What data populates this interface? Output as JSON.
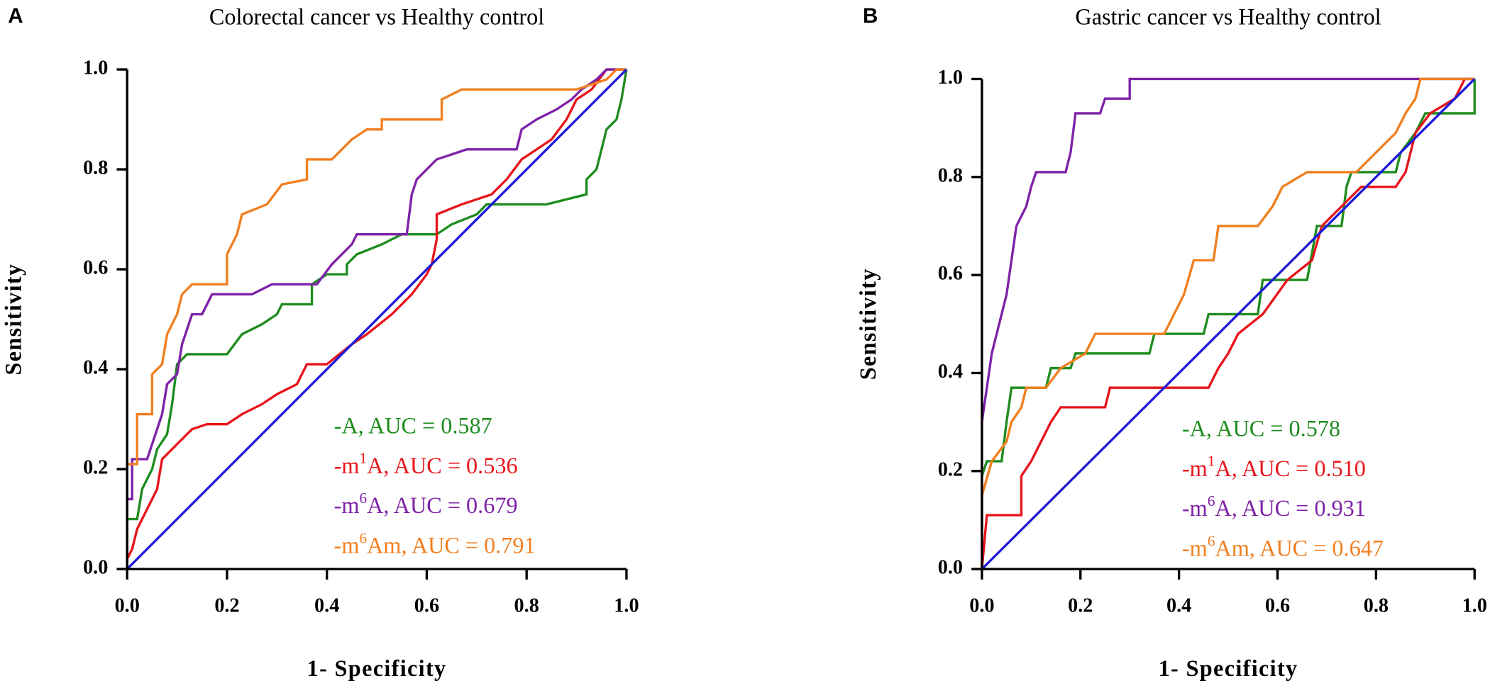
{
  "chart_data": [
    {
      "type": "line",
      "panel_label": "A",
      "title": "Colorectal cancer vs Healthy control",
      "xlabel": "1- Specificity",
      "ylabel": "Sensitivity",
      "xlim": [
        0,
        1
      ],
      "ylim": [
        0,
        1
      ],
      "xticks": [
        {
          "value": 0,
          "label": "0.0"
        },
        0.2,
        0.4,
        0.6,
        0.8,
        {
          "value": 1,
          "label": "1.0"
        }
      ],
      "yticks": [
        {
          "value": 0,
          "label": "0.0"
        },
        0.2,
        0.4,
        0.6,
        0.8,
        {
          "value": 1,
          "label": "1.0"
        }
      ],
      "series": [
        {
          "name": "A",
          "legend": [
            "-A, AUC = 0.587"
          ],
          "color": "#1e8c1e",
          "x": [
            0,
            0,
            0.02,
            0.03,
            0.05,
            0.06,
            0.08,
            0.09,
            0.1,
            0.12,
            0.2,
            0.23,
            0.27,
            0.3,
            0.31,
            0.37,
            0.37,
            0.4,
            0.44,
            0.44,
            0.46,
            0.51,
            0.55,
            0.62,
            0.65,
            0.7,
            0.72,
            0.84,
            0.92,
            0.92,
            0.94,
            0.95,
            0.96,
            0.98,
            0.99,
            1.0
          ],
          "y": [
            0,
            0.1,
            0.1,
            0.16,
            0.2,
            0.24,
            0.27,
            0.33,
            0.41,
            0.43,
            0.43,
            0.47,
            0.49,
            0.51,
            0.53,
            0.53,
            0.57,
            0.59,
            0.59,
            0.61,
            0.63,
            0.65,
            0.67,
            0.67,
            0.69,
            0.71,
            0.73,
            0.73,
            0.75,
            0.78,
            0.8,
            0.84,
            0.88,
            0.9,
            0.94,
            1.0
          ]
        },
        {
          "name": "m1A",
          "legend": [
            "-m",
            "1",
            "A, AUC = 0.536"
          ],
          "color": "#e8141a",
          "x": [
            0,
            0,
            0.01,
            0.02,
            0.04,
            0.06,
            0.07,
            0.09,
            0.11,
            0.13,
            0.16,
            0.2,
            0.23,
            0.27,
            0.3,
            0.34,
            0.35,
            0.36,
            0.4,
            0.45,
            0.48,
            0.53,
            0.57,
            0.6,
            0.61,
            0.62,
            0.62,
            0.67,
            0.73,
            0.76,
            0.79,
            0.85,
            0.88,
            0.9,
            0.93,
            0.96,
            1.0
          ],
          "y": [
            0,
            0.02,
            0.04,
            0.08,
            0.12,
            0.16,
            0.22,
            0.24,
            0.26,
            0.28,
            0.29,
            0.29,
            0.31,
            0.33,
            0.35,
            0.37,
            0.39,
            0.41,
            0.41,
            0.45,
            0.47,
            0.51,
            0.55,
            0.59,
            0.61,
            0.66,
            0.71,
            0.73,
            0.75,
            0.78,
            0.82,
            0.86,
            0.9,
            0.94,
            0.96,
            1.0,
            1.0
          ]
        },
        {
          "name": "m6A",
          "legend": [
            "-m",
            "6",
            "A, AUC = 0.679"
          ],
          "color": "#7e22a8",
          "x": [
            0,
            0,
            0.01,
            0.01,
            0.04,
            0.05,
            0.07,
            0.08,
            0.1,
            0.11,
            0.13,
            0.15,
            0.17,
            0.25,
            0.29,
            0.38,
            0.41,
            0.45,
            0.46,
            0.56,
            0.57,
            0.58,
            0.6,
            0.62,
            0.68,
            0.78,
            0.79,
            0.82,
            0.86,
            0.89,
            0.91,
            0.94,
            0.96,
            1.0
          ],
          "y": [
            0,
            0.14,
            0.14,
            0.22,
            0.22,
            0.25,
            0.31,
            0.37,
            0.39,
            0.45,
            0.51,
            0.51,
            0.55,
            0.55,
            0.57,
            0.57,
            0.61,
            0.65,
            0.67,
            0.67,
            0.75,
            0.78,
            0.8,
            0.82,
            0.84,
            0.84,
            0.88,
            0.9,
            0.92,
            0.94,
            0.96,
            0.98,
            1.0,
            1.0
          ]
        },
        {
          "name": "m6Am",
          "legend": [
            "-m",
            "6",
            "Am, AUC = 0.791"
          ],
          "color": "#f07f1f",
          "x": [
            0,
            0,
            0.02,
            0.02,
            0.05,
            0.05,
            0.07,
            0.08,
            0.1,
            0.11,
            0.13,
            0.2,
            0.2,
            0.22,
            0.23,
            0.28,
            0.31,
            0.36,
            0.36,
            0.41,
            0.45,
            0.48,
            0.51,
            0.51,
            0.63,
            0.63,
            0.67,
            0.9,
            0.96,
            0.98,
            1.0
          ],
          "y": [
            0,
            0.21,
            0.21,
            0.31,
            0.31,
            0.39,
            0.41,
            0.47,
            0.51,
            0.55,
            0.57,
            0.57,
            0.63,
            0.67,
            0.71,
            0.73,
            0.77,
            0.78,
            0.82,
            0.82,
            0.86,
            0.88,
            0.88,
            0.9,
            0.9,
            0.94,
            0.96,
            0.96,
            0.98,
            1.0,
            1.0
          ]
        },
        {
          "name": "Reference",
          "color": "#1c1cd8",
          "x": [
            0,
            1
          ],
          "y": [
            0,
            1
          ]
        }
      ]
    },
    {
      "type": "line",
      "panel_label": "B",
      "title": "Gastric cancer vs Healthy control",
      "xlabel": "1- Specificity",
      "ylabel": "Sensitivity",
      "xlim": [
        0,
        1
      ],
      "ylim": [
        0,
        1
      ],
      "xticks": [
        {
          "value": 0,
          "label": "0.0"
        },
        0.2,
        0.4,
        0.6,
        0.8,
        {
          "value": 1,
          "label": "1.0"
        }
      ],
      "yticks": [
        {
          "value": 0,
          "label": "0.0"
        },
        0.2,
        0.4,
        0.6,
        0.8,
        {
          "value": 1,
          "label": "1.0"
        }
      ],
      "series": [
        {
          "name": "A",
          "legend": [
            "-A, AUC = 0.578"
          ],
          "color": "#1e8c1e",
          "x": [
            0,
            0,
            0.01,
            0.04,
            0.05,
            0.06,
            0.13,
            0.14,
            0.18,
            0.19,
            0.34,
            0.35,
            0.45,
            0.46,
            0.56,
            0.57,
            0.66,
            0.68,
            0.73,
            0.74,
            0.75,
            0.84,
            0.85,
            0.88,
            0.9,
            1.0,
            1.0
          ],
          "y": [
            0,
            0.19,
            0.22,
            0.22,
            0.3,
            0.37,
            0.37,
            0.41,
            0.41,
            0.44,
            0.44,
            0.48,
            0.48,
            0.52,
            0.52,
            0.59,
            0.59,
            0.7,
            0.7,
            0.78,
            0.81,
            0.81,
            0.85,
            0.89,
            0.93,
            0.93,
            1.0
          ]
        },
        {
          "name": "m1A",
          "legend": [
            "-m",
            "1",
            "A, AUC = 0.510"
          ],
          "color": "#e8141a",
          "x": [
            0,
            0.01,
            0.08,
            0.08,
            0.1,
            0.12,
            0.14,
            0.16,
            0.25,
            0.26,
            0.46,
            0.48,
            0.5,
            0.52,
            0.57,
            0.62,
            0.67,
            0.69,
            0.73,
            0.77,
            0.84,
            0.86,
            0.88,
            0.91,
            0.96,
            0.98,
            1.0
          ],
          "y": [
            0,
            0.11,
            0.11,
            0.19,
            0.22,
            0.26,
            0.3,
            0.33,
            0.33,
            0.37,
            0.37,
            0.41,
            0.44,
            0.48,
            0.52,
            0.59,
            0.63,
            0.7,
            0.74,
            0.78,
            0.78,
            0.81,
            0.89,
            0.93,
            0.96,
            1.0,
            1.0
          ]
        },
        {
          "name": "m6A",
          "legend": [
            "-m",
            "6",
            "A, AUC = 0.931"
          ],
          "color": "#7e22a8",
          "x": [
            0,
            0,
            0.01,
            0.02,
            0.03,
            0.04,
            0.05,
            0.06,
            0.07,
            0.09,
            0.1,
            0.11,
            0.17,
            0.18,
            0.19,
            0.24,
            0.25,
            0.3,
            0.3,
            1.0
          ],
          "y": [
            0,
            0.3,
            0.37,
            0.44,
            0.48,
            0.52,
            0.56,
            0.63,
            0.7,
            0.74,
            0.78,
            0.81,
            0.81,
            0.85,
            0.93,
            0.93,
            0.96,
            0.96,
            1.0,
            1.0
          ]
        },
        {
          "name": "m6Am",
          "legend": [
            "-m",
            "6",
            "Am, AUC = 0.647"
          ],
          "color": "#f07f1f",
          "x": [
            0,
            0,
            0.02,
            0.05,
            0.06,
            0.08,
            0.09,
            0.13,
            0.16,
            0.21,
            0.23,
            0.37,
            0.39,
            0.41,
            0.43,
            0.47,
            0.48,
            0.56,
            0.59,
            0.61,
            0.66,
            0.76,
            0.8,
            0.84,
            0.86,
            0.88,
            0.89,
            1.0
          ],
          "y": [
            0,
            0.15,
            0.22,
            0.26,
            0.3,
            0.33,
            0.37,
            0.37,
            0.41,
            0.44,
            0.48,
            0.48,
            0.52,
            0.56,
            0.63,
            0.63,
            0.7,
            0.7,
            0.74,
            0.78,
            0.81,
            0.81,
            0.85,
            0.89,
            0.93,
            0.96,
            1.0,
            1.0
          ]
        },
        {
          "name": "Reference",
          "color": "#1c1cd8",
          "x": [
            0,
            1
          ],
          "y": [
            0,
            1
          ]
        }
      ]
    }
  ]
}
